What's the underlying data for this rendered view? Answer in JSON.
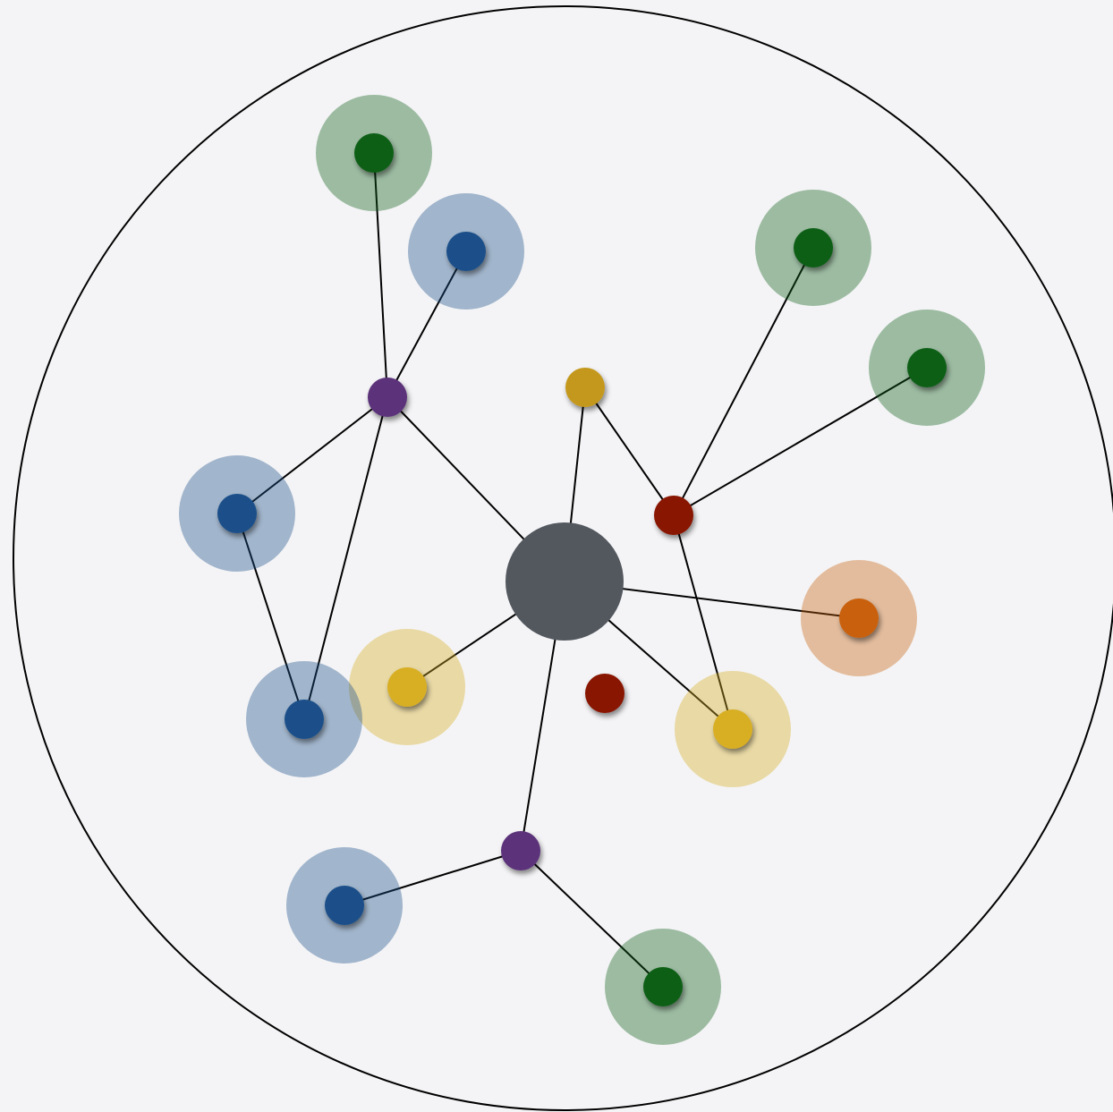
{
  "colors": {
    "background": "#f4f4f6",
    "boundary": "#000000",
    "edge": "#000000",
    "hub": "#53585f",
    "green": "#0c5e17",
    "blue": "#1a5089",
    "purple": "#5c327a",
    "yellow": "#d8ae22",
    "gold": "#c4981f",
    "red": "#881202",
    "orange": "#c9610c"
  },
  "nodes": [
    {
      "id": "hub",
      "kind": "hub",
      "color": "hub",
      "halo": false
    },
    {
      "id": "purple-upper",
      "kind": "connector",
      "color": "purple",
      "halo": false
    },
    {
      "id": "purple-lower",
      "kind": "connector",
      "color": "purple",
      "halo": false
    },
    {
      "id": "red-connector",
      "kind": "connector",
      "color": "red",
      "halo": false
    },
    {
      "id": "gold-small",
      "kind": "connector",
      "color": "gold",
      "halo": false
    },
    {
      "id": "red-isolated",
      "kind": "connector",
      "color": "red",
      "halo": false
    },
    {
      "id": "green-top",
      "kind": "leaf",
      "color": "green",
      "halo": true
    },
    {
      "id": "blue-top",
      "kind": "leaf",
      "color": "blue",
      "halo": true
    },
    {
      "id": "green-upper-right",
      "kind": "leaf",
      "color": "green",
      "halo": true
    },
    {
      "id": "green-right",
      "kind": "leaf",
      "color": "green",
      "halo": true
    },
    {
      "id": "blue-left",
      "kind": "leaf",
      "color": "blue",
      "halo": true
    },
    {
      "id": "orange-right",
      "kind": "leaf",
      "color": "orange",
      "halo": true
    },
    {
      "id": "yellow-left",
      "kind": "leaf",
      "color": "yellow",
      "halo": true
    },
    {
      "id": "blue-lower-left",
      "kind": "leaf",
      "color": "blue",
      "halo": true
    },
    {
      "id": "yellow-right",
      "kind": "leaf",
      "color": "yellow",
      "halo": true
    },
    {
      "id": "blue-bottom",
      "kind": "leaf",
      "color": "blue",
      "halo": true
    },
    {
      "id": "green-bottom",
      "kind": "leaf",
      "color": "green",
      "halo": true
    }
  ],
  "edges": [
    [
      "hub",
      "purple-upper"
    ],
    [
      "hub",
      "gold-small"
    ],
    [
      "hub",
      "orange-right"
    ],
    [
      "hub",
      "yellow-right"
    ],
    [
      "hub",
      "yellow-left"
    ],
    [
      "hub",
      "purple-lower"
    ],
    [
      "purple-upper",
      "green-top"
    ],
    [
      "purple-upper",
      "blue-top"
    ],
    [
      "purple-upper",
      "blue-left"
    ],
    [
      "purple-upper",
      "blue-lower-left"
    ],
    [
      "blue-left",
      "blue-lower-left"
    ],
    [
      "gold-small",
      "red-connector"
    ],
    [
      "red-connector",
      "green-upper-right"
    ],
    [
      "red-connector",
      "green-right"
    ],
    [
      "red-connector",
      "yellow-right"
    ],
    [
      "purple-lower",
      "blue-bottom"
    ],
    [
      "purple-lower",
      "green-bottom"
    ]
  ]
}
